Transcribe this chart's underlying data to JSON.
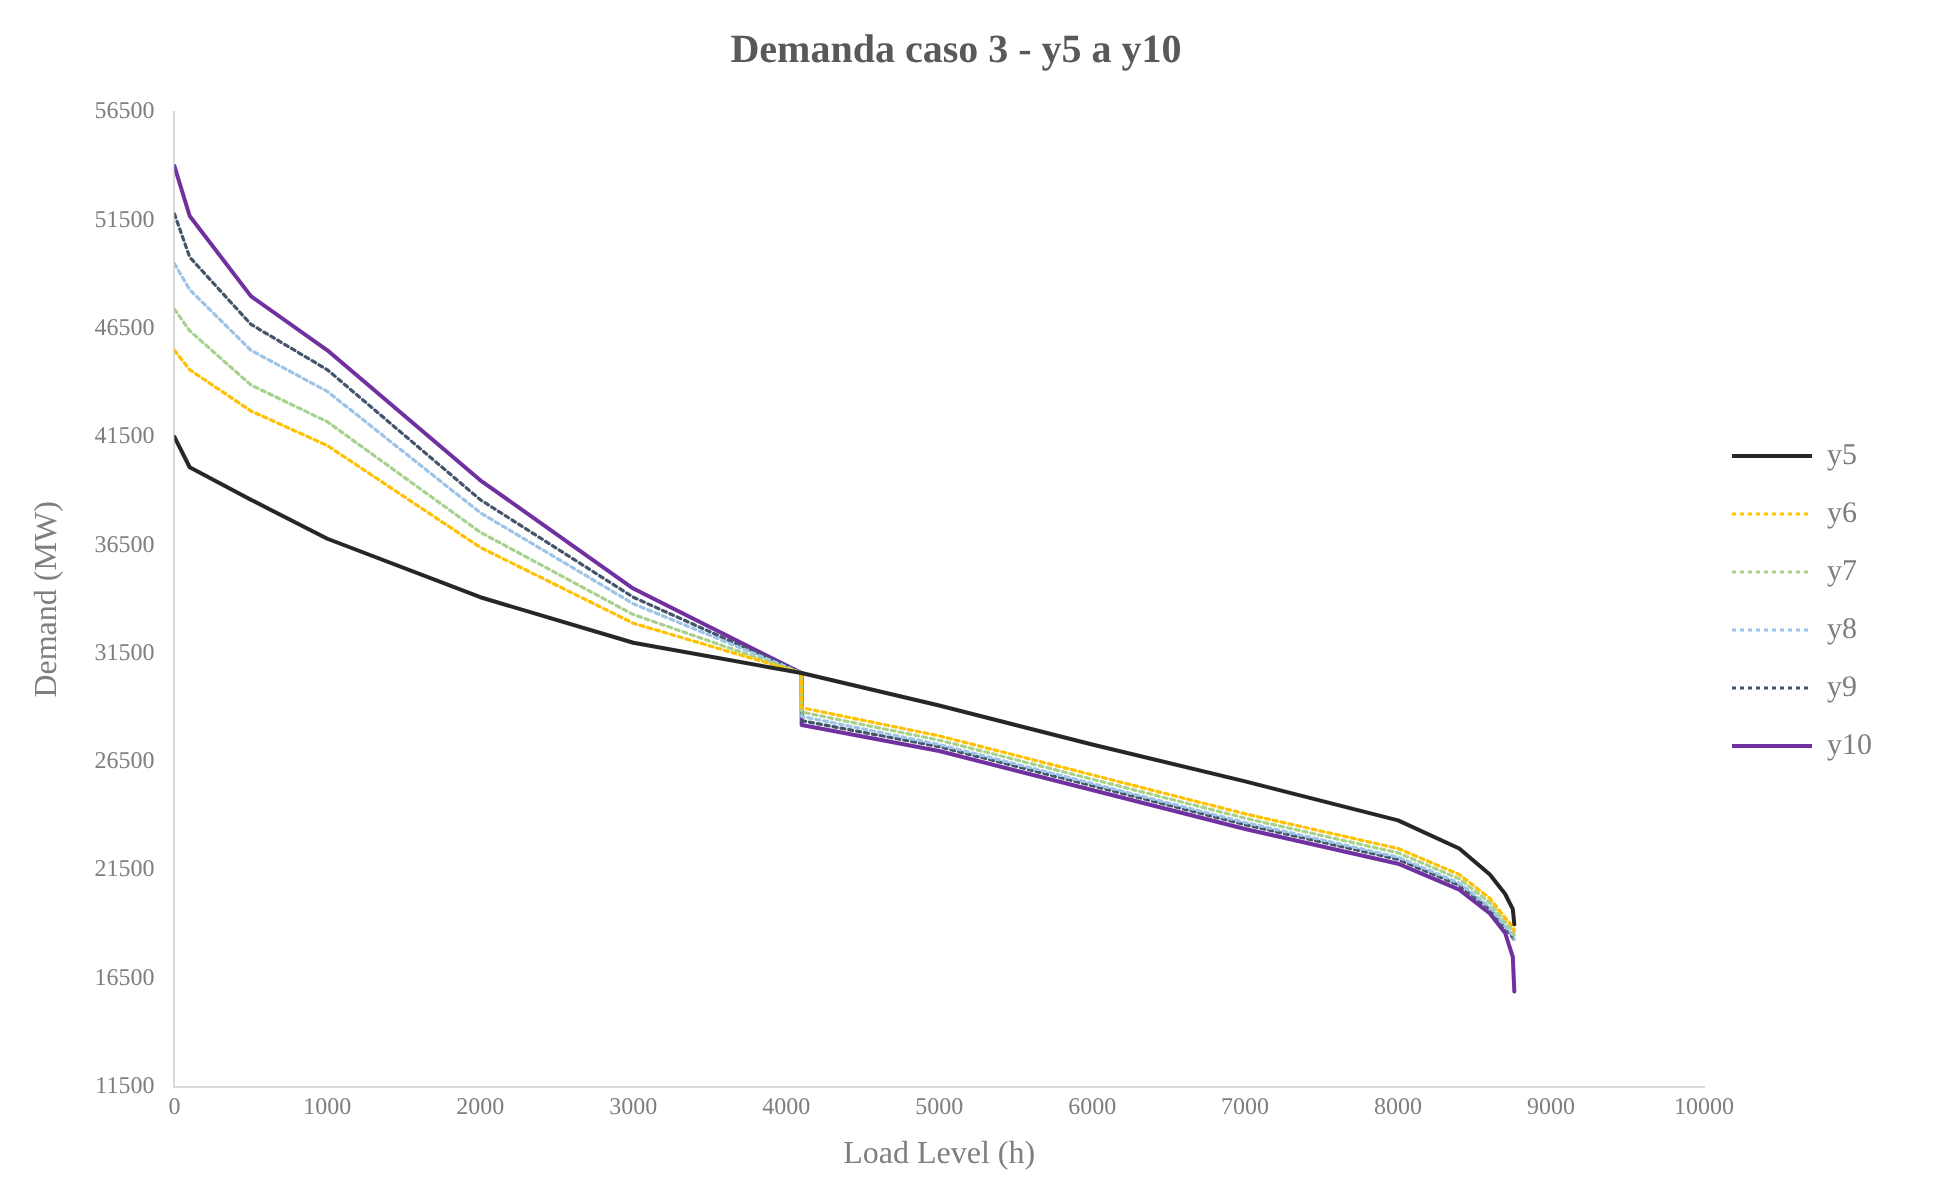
{
  "chart_data": {
    "type": "line",
    "title": "Demanda caso 3 - y5 a y10",
    "xlabel": "Load Level (h)",
    "ylabel": "Demand (MW)",
    "xlim": [
      0,
      10000
    ],
    "xticks": [
      0,
      1000,
      2000,
      3000,
      4000,
      5000,
      6000,
      7000,
      8000,
      9000,
      10000
    ],
    "ylim": [
      11500,
      56500
    ],
    "yticks": [
      11500,
      16500,
      21500,
      26500,
      31500,
      36500,
      41500,
      46500,
      51500,
      56500
    ],
    "grid": false,
    "legend": "right",
    "marker": "none",
    "series": [
      {
        "name": "y5",
        "color": "#262626",
        "line_style": "solid",
        "x": [
          0,
          100,
          500,
          1000,
          2000,
          3000,
          4100,
          5000,
          6000,
          7000,
          8000,
          8400,
          8600,
          8700,
          8750,
          8760
        ],
        "values": [
          41500,
          40100,
          38600,
          36800,
          34100,
          32000,
          30600,
          29100,
          27300,
          25600,
          23800,
          22500,
          21300,
          20400,
          19700,
          19000
        ]
      },
      {
        "name": "y6",
        "color": "#ffc000",
        "line_style": "dotted",
        "x": [
          0,
          100,
          500,
          1000,
          2000,
          3000,
          4100,
          4101,
          5000,
          6000,
          7000,
          8000,
          8400,
          8600,
          8700,
          8750,
          8760
        ],
        "values": [
          45500,
          44600,
          42700,
          41100,
          36400,
          32900,
          30600,
          29000,
          27700,
          25900,
          24100,
          22500,
          21300,
          20200,
          19300,
          18900,
          18700
        ]
      },
      {
        "name": "y7",
        "color": "#a9d18e",
        "line_style": "dotted",
        "x": [
          0,
          100,
          500,
          1000,
          2000,
          3000,
          4100,
          4101,
          5000,
          6000,
          7000,
          8000,
          8400,
          8600,
          8700,
          8750,
          8760
        ],
        "values": [
          47400,
          46400,
          43900,
          42200,
          37100,
          33300,
          30600,
          28800,
          27500,
          25700,
          23900,
          22300,
          21100,
          20000,
          19100,
          18700,
          18500
        ]
      },
      {
        "name": "y8",
        "color": "#9dc3e6",
        "line_style": "dotted",
        "x": [
          0,
          100,
          500,
          1000,
          2000,
          3000,
          4100,
          4101,
          5000,
          6000,
          7000,
          8000,
          8400,
          8600,
          8700,
          8750,
          8760
        ],
        "values": [
          49500,
          48300,
          45500,
          43600,
          38000,
          33800,
          30600,
          28600,
          27300,
          25500,
          23700,
          22100,
          20900,
          19800,
          18900,
          18500,
          18300
        ]
      },
      {
        "name": "y9",
        "color": "#44546a",
        "line_style": "dotted",
        "x": [
          0,
          100,
          500,
          1000,
          2000,
          3000,
          4100,
          4101,
          5000,
          6000,
          7000,
          8000,
          8400,
          8600,
          8700,
          8750,
          8760
        ],
        "values": [
          51800,
          49800,
          46700,
          44600,
          38600,
          34100,
          30600,
          28400,
          27200,
          25400,
          23600,
          22000,
          20800,
          19700,
          18800,
          18400,
          18200
        ]
      },
      {
        "name": "y10",
        "color": "#7030a0",
        "line_style": "solid",
        "x": [
          0,
          100,
          500,
          1000,
          2000,
          3000,
          4100,
          4101,
          5000,
          6000,
          7000,
          8000,
          8400,
          8600,
          8700,
          8750,
          8760
        ],
        "values": [
          54000,
          51700,
          48000,
          45500,
          39500,
          34500,
          30600,
          28200,
          27000,
          25200,
          23400,
          21800,
          20600,
          19500,
          18600,
          17500,
          15900
        ]
      }
    ]
  }
}
